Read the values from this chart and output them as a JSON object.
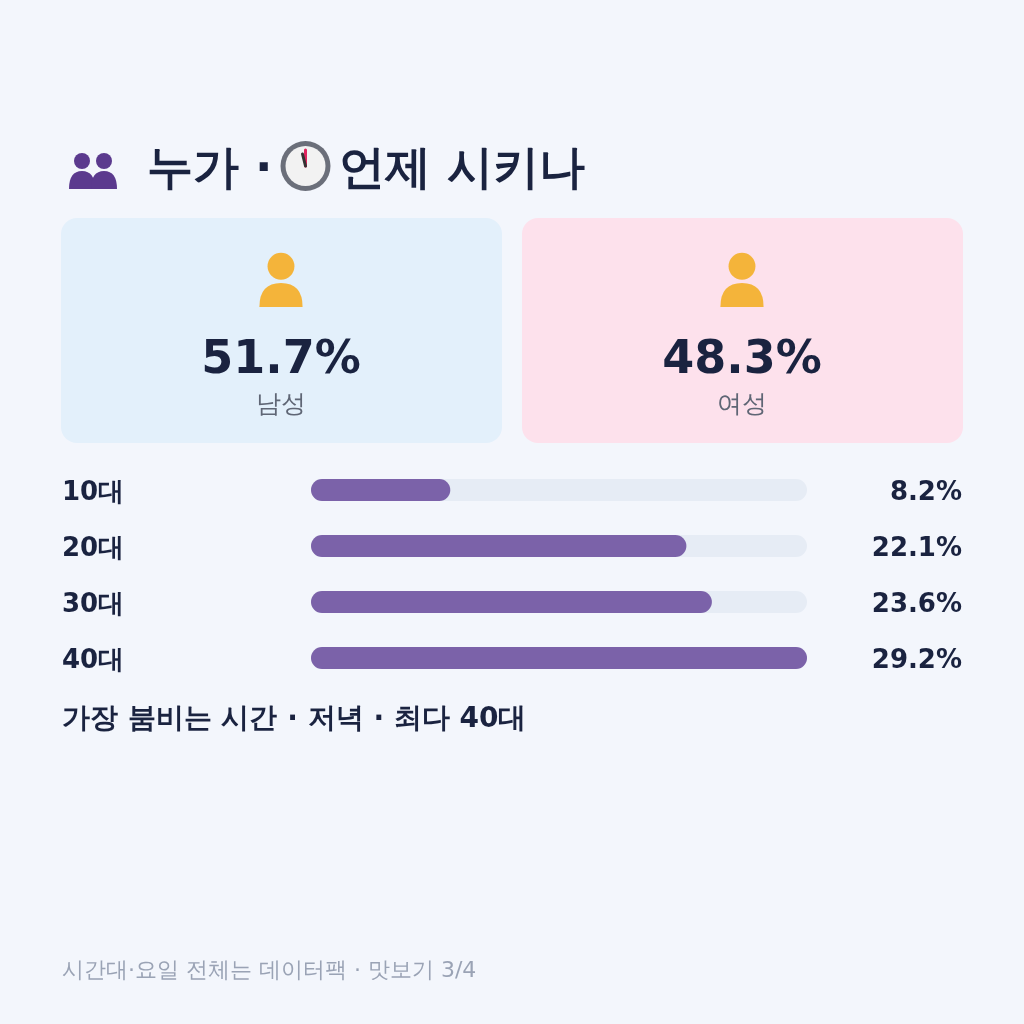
{
  "chart_data": [
    {
      "type": "other",
      "title": "누가 · 언제 시키나",
      "categories": [
        "남성",
        "여성"
      ],
      "value_labels": [
        "51.7%",
        "48.3%"
      ],
      "colors": [
        "#e3f0fb",
        "#fde1ec"
      ]
    },
    {
      "type": "bar",
      "orientation": "horizontal",
      "categories": [
        "10대",
        "20대",
        "30대",
        "40대"
      ],
      "values": [
        8.2,
        22.1,
        23.6,
        29.2
      ],
      "value_labels": [
        "8.2%",
        "22.1%",
        "23.6%",
        "29.2%"
      ],
      "color": "#7b62a9",
      "annotations": [
        "가장 붐비는 시간 · 저녁 · 최다 40대",
        "시간대·요일 전체는 데이터팩 · 맛보기 3/4"
      ]
    }
  ]
}
